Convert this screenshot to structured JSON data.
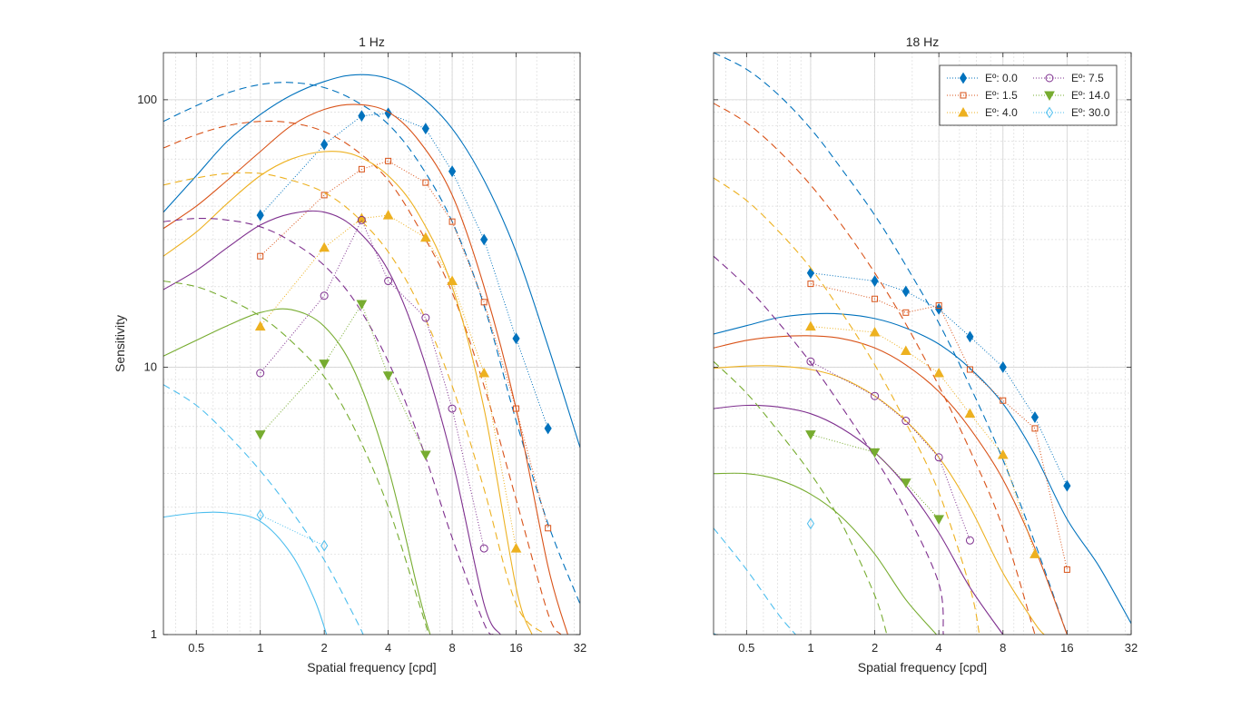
{
  "chart_data": [
    {
      "type": "line",
      "title": "1 Hz",
      "xlabel": "Spatial frequency [cpd]",
      "ylabel": "Sensitivity",
      "xscale": "log",
      "yscale": "log",
      "xlim": [
        0.35,
        32
      ],
      "ylim": [
        1,
        150
      ],
      "xticks": [
        0.5,
        1,
        2,
        4,
        8,
        16,
        32
      ],
      "xtick_labels": [
        "0.5",
        "1",
        "2",
        "4",
        "8",
        "16",
        "32"
      ],
      "yticks": [
        1,
        10,
        100
      ],
      "ytick_labels": [
        "1",
        "10",
        "100"
      ],
      "grid": true,
      "series": [
        {
          "name": "Eº: 0.0",
          "color": "#0072BD",
          "marker": "diamond",
          "filled": true,
          "x": [
            1,
            2,
            3,
            4,
            6,
            8,
            11.3,
            16,
            22.6
          ],
          "y": [
            37,
            68,
            87,
            89,
            78,
            54,
            30,
            12.8,
            5.9
          ],
          "fit_solid": {
            "x": [
              0.35,
              0.5,
              0.7,
              1,
              1.4,
              2,
              2.8,
              4,
              5.6,
              8,
              11.3,
              16,
              22.6,
              32
            ],
            "y": [
              38,
              52,
              70,
              88,
              104,
              117,
              124,
              120,
              104,
              78,
              50,
              27,
              12,
              5
            ]
          },
          "fit_dashed": {
            "x": [
              0.35,
              0.5,
              0.7,
              1,
              1.4,
              2,
              2.8,
              4,
              5.6,
              8,
              11.3,
              16,
              22.6,
              32
            ],
            "y": [
              83,
              95,
              106,
              114,
              116,
              111,
              99,
              81,
              58,
              35,
              17,
              6.3,
              2.6,
              1.3
            ]
          }
        },
        {
          "name": "Eº: 1.5",
          "color": "#D95319",
          "marker": "square",
          "filled": false,
          "x": [
            1,
            2,
            3,
            4,
            6,
            8,
            11.3,
            16,
            22.6
          ],
          "y": [
            26,
            44,
            55,
            59,
            49,
            35,
            17.5,
            7,
            2.5
          ],
          "fit_solid": {
            "x": [
              0.35,
              0.5,
              0.7,
              1,
              1.4,
              2,
              2.8,
              4,
              5.6,
              8,
              11.3,
              16,
              22.6,
              28
            ],
            "y": [
              33,
              40,
              50,
              64,
              80,
              92,
              96,
              90,
              70,
              44,
              20,
              7,
              1.8,
              1
            ]
          },
          "fit_dashed": {
            "x": [
              0.35,
              0.5,
              0.7,
              1,
              1.4,
              2,
              2.8,
              4,
              5.6,
              8,
              11.3,
              16,
              22.6,
              26
            ],
            "y": [
              66,
              74,
              80,
              83,
              82,
              76,
              65,
              50,
              33,
              19,
              8.5,
              3.2,
              1.2,
              1
            ]
          }
        },
        {
          "name": "Eº: 4.0",
          "color": "#EDB120",
          "marker": "triangle-up",
          "filled": true,
          "x": [
            1,
            2,
            3,
            4,
            6,
            8,
            11.3,
            16
          ],
          "y": [
            14.2,
            28,
            36,
            37,
            30.5,
            21,
            9.5,
            2.1
          ],
          "fit_solid": {
            "x": [
              0.35,
              0.5,
              0.7,
              1,
              1.4,
              2,
              2.8,
              4,
              5.6,
              8,
              11.3,
              16,
              19
            ],
            "y": [
              26,
              32,
              41,
              52,
              60,
              64,
              62,
              52,
              37,
              20,
              7,
              1.5,
              1
            ]
          },
          "fit_dashed": {
            "x": [
              0.35,
              0.5,
              0.7,
              1,
              1.4,
              2,
              2.8,
              4,
              5.6,
              8,
              11.3,
              16,
              22
            ],
            "y": [
              48,
              51,
              53,
              53,
              50,
              45,
              37,
              27,
              17,
              8.5,
              3.5,
              1.3,
              1
            ]
          }
        },
        {
          "name": "Eº: 7.5",
          "color": "#7E2F8E",
          "marker": "circle",
          "filled": false,
          "x": [
            1,
            2,
            3,
            4,
            6,
            8,
            11.3
          ],
          "y": [
            9.5,
            18.5,
            35.5,
            21,
            15.3,
            7,
            2.1
          ],
          "fit_solid": {
            "x": [
              0.35,
              0.5,
              0.7,
              1,
              1.4,
              2,
              2.8,
              4,
              5.6,
              8,
              11.3,
              13.5
            ],
            "y": [
              19.5,
              23,
              28,
              34,
              37.5,
              38,
              33,
              23,
              12,
              4.5,
              1.3,
              1
            ]
          },
          "fit_dashed": {
            "x": [
              0.35,
              0.5,
              0.7,
              1,
              1.4,
              2,
              2.8,
              4,
              5.6,
              8,
              11.3,
              12.5
            ],
            "y": [
              35,
              36,
              35.5,
              33.5,
              29.5,
              24,
              17.5,
              10.5,
              5.4,
              2.3,
              1.1,
              1
            ]
          }
        },
        {
          "name": "Eº: 14.0",
          "color": "#77AC30",
          "marker": "triangle-down",
          "filled": true,
          "x": [
            1,
            2,
            3,
            4,
            6
          ],
          "y": [
            5.6,
            10.3,
            17.2,
            9.3,
            4.7
          ],
          "fit_solid": {
            "x": [
              0.35,
              0.5,
              0.7,
              1,
              1.4,
              2,
              2.8,
              4,
              5.6,
              6.3
            ],
            "y": [
              11,
              12.6,
              14.3,
              16,
              16.4,
              14.2,
              9.5,
              4.2,
              1.4,
              1
            ]
          },
          "fit_dashed": {
            "x": [
              0.35,
              0.5,
              0.7,
              1,
              1.4,
              2,
              2.8,
              4,
              5.6,
              6.2
            ],
            "y": [
              21,
              20,
              18,
              15.5,
              12.5,
              9.2,
              5.8,
              3,
              1.3,
              1
            ]
          }
        },
        {
          "name": "Eº: 30.0",
          "color": "#4DBEEE",
          "marker": "diamond",
          "filled": false,
          "x": [
            1,
            2
          ],
          "y": [
            2.8,
            2.15
          ],
          "fit_solid": {
            "x": [
              0.35,
              0.5,
              0.7,
              1,
              1.4,
              1.8,
              2.05
            ],
            "y": [
              2.75,
              2.85,
              2.85,
              2.65,
              2.0,
              1.35,
              1
            ]
          },
          "fit_dashed": {
            "x": [
              0.35,
              0.5,
              0.7,
              1,
              1.4,
              2,
              2.8,
              3.05
            ],
            "y": [
              8.6,
              7.2,
              5.6,
              4.1,
              2.9,
              1.9,
              1.15,
              1
            ]
          }
        }
      ]
    },
    {
      "type": "line",
      "title": "18 Hz",
      "xlabel": "Spatial frequency [cpd]",
      "ylabel": "",
      "xscale": "log",
      "yscale": "log",
      "xlim": [
        0.35,
        32
      ],
      "ylim": [
        1,
        150
      ],
      "xticks": [
        0.5,
        1,
        2,
        4,
        8,
        16,
        32
      ],
      "xtick_labels": [
        "0.5",
        "1",
        "2",
        "4",
        "8",
        "16",
        "32"
      ],
      "grid": true,
      "legend": "top-right",
      "legend_columns": 2,
      "series": [
        {
          "name": "Eº: 0.0",
          "color": "#0072BD",
          "marker": "diamond",
          "filled": true,
          "x": [
            1,
            2,
            2.8,
            4,
            5.6,
            8,
            11.3,
            16
          ],
          "y": [
            22.5,
            21,
            19.2,
            16.5,
            13,
            10,
            6.5,
            3.6
          ],
          "fit_solid": {
            "x": [
              0.35,
              0.5,
              0.7,
              1,
              1.4,
              2,
              2.8,
              4,
              5.6,
              8,
              11.3,
              16,
              22.6,
              32
            ],
            "y": [
              13.3,
              14.3,
              15.3,
              15.8,
              15.8,
              15.2,
              14,
              12.2,
              9.9,
              7.3,
              4.7,
              2.7,
              1.8,
              1.1
            ]
          },
          "fit_dashed": {
            "x": [
              0.35,
              0.5,
              0.7,
              1,
              1.4,
              2,
              2.8,
              4,
              5.6,
              8,
              11.3,
              16
            ],
            "y": [
              150,
              130,
              105,
              78,
              55,
              37,
              24,
              14.6,
              8.5,
              4.5,
              2.2,
              1
            ]
          }
        },
        {
          "name": "Eº: 1.5",
          "color": "#D95319",
          "marker": "square",
          "filled": false,
          "x": [
            1,
            2,
            2.8,
            4,
            5.6,
            8,
            11.3,
            16
          ],
          "y": [
            20.5,
            18,
            16,
            17,
            9.8,
            7.5,
            5.9,
            1.75
          ],
          "fit_solid": {
            "x": [
              0.35,
              0.5,
              0.7,
              1,
              1.4,
              2,
              2.8,
              4,
              5.6,
              8,
              11.3,
              16
            ],
            "y": [
              11.8,
              12.6,
              13,
              13.1,
              12.8,
              11.8,
              10.2,
              8.1,
              5.9,
              3.8,
              2.1,
              1
            ]
          },
          "fit_dashed": {
            "x": [
              0.35,
              0.5,
              0.7,
              1,
              1.4,
              2,
              2.8,
              4,
              5.6,
              8,
              11.3
            ],
            "y": [
              97,
              82,
              65,
              48,
              34,
              22.5,
              14.5,
              8.5,
              4.9,
              2.5,
              1
            ]
          }
        },
        {
          "name": "Eº: 4.0",
          "color": "#EDB120",
          "marker": "triangle-up",
          "filled": true,
          "x": [
            1,
            2,
            2.8,
            4,
            5.6,
            8,
            11.3
          ],
          "y": [
            14.2,
            13.5,
            11.5,
            9.5,
            6.7,
            4.7,
            2
          ],
          "fit_solid": {
            "x": [
              0.35,
              0.5,
              0.7,
              1,
              1.4,
              2,
              2.8,
              4,
              5.6,
              8,
              11.3,
              12.5
            ],
            "y": [
              9.9,
              10.1,
              10.1,
              9.8,
              9.1,
              7.8,
              6.3,
              4.6,
              3,
              1.7,
              1.1,
              1
            ]
          },
          "fit_dashed": {
            "x": [
              0.35,
              0.5,
              0.7,
              1,
              1.4,
              2,
              2.8,
              4,
              5.6,
              6.2
            ],
            "y": [
              51,
              42,
              32.5,
              23.5,
              16,
              10.2,
              6.2,
              3.4,
              1.5,
              1
            ]
          }
        },
        {
          "name": "Eº: 7.5",
          "color": "#7E2F8E",
          "marker": "circle",
          "filled": false,
          "x": [
            1,
            2,
            2.8,
            4,
            5.6
          ],
          "y": [
            10.5,
            7.8,
            6.3,
            4.6,
            2.25
          ],
          "fit_solid": {
            "x": [
              0.35,
              0.5,
              0.7,
              1,
              1.4,
              2,
              2.8,
              4,
              5.6,
              8
            ],
            "y": [
              7.0,
              7.2,
              7.1,
              6.7,
              5.9,
              4.8,
              3.6,
              2.4,
              1.5,
              1
            ]
          },
          "fit_dashed": {
            "x": [
              0.35,
              0.5,
              0.7,
              1,
              1.4,
              2,
              2.8,
              4,
              4.2
            ],
            "y": [
              26,
              20,
              14.8,
              10.4,
              7.1,
              4.6,
              2.9,
              1.55,
              1
            ]
          }
        },
        {
          "name": "Eº: 14.0",
          "color": "#77AC30",
          "marker": "triangle-down",
          "filled": true,
          "x": [
            1,
            2,
            2.8,
            4
          ],
          "y": [
            5.6,
            4.8,
            3.7,
            2.7
          ],
          "fit_solid": {
            "x": [
              0.35,
              0.5,
              0.7,
              1,
              1.4,
              2,
              2.8,
              3.9
            ],
            "y": [
              4.0,
              4.0,
              3.8,
              3.35,
              2.75,
              2.0,
              1.35,
              1
            ]
          },
          "fit_dashed": {
            "x": [
              0.35,
              0.5,
              0.7,
              1,
              1.4,
              2,
              2.28
            ],
            "y": [
              10.5,
              8.0,
              5.8,
              4.0,
              2.6,
              1.4,
              1
            ]
          }
        },
        {
          "name": "Eº: 30.0",
          "color": "#4DBEEE",
          "marker": "diamond",
          "filled": false,
          "x": [
            1
          ],
          "y": [
            2.6
          ],
          "fit_solid": {
            "x": [
              0.35,
              0.36
            ],
            "y": [
              1.01,
              1
            ]
          },
          "fit_dashed": {
            "x": [
              0.35,
              0.5,
              0.7,
              0.85
            ],
            "y": [
              2.5,
              1.75,
              1.2,
              1
            ]
          }
        }
      ]
    }
  ]
}
